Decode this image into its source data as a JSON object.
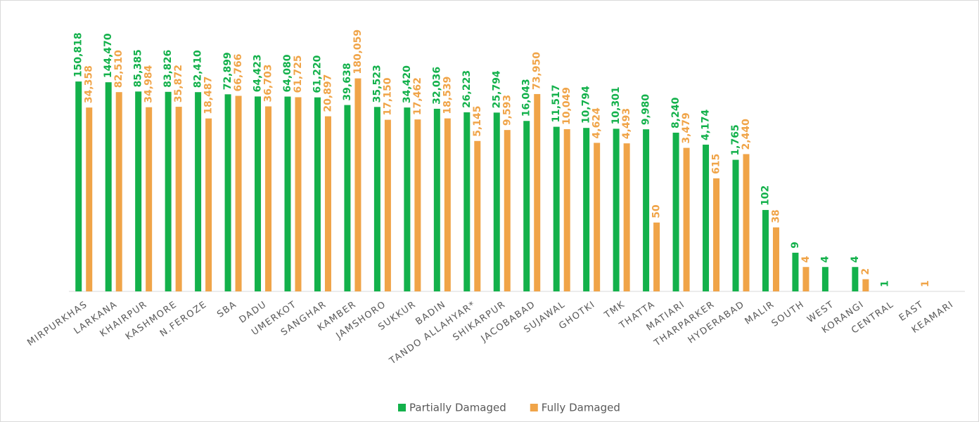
{
  "chart_data": {
    "type": "bar",
    "log_scale": true,
    "ylim": [
      1,
      200000
    ],
    "legend": "bottom",
    "categories": [
      "MIRPURKHAS",
      "LARKANA",
      "KHAIRPUR",
      "KASHMORE",
      "N.FEROZE",
      "SBA",
      "DADU",
      "UMERKOT",
      "SANGHAR",
      "KAMBER",
      "JAMSHORO",
      "SUKKUR",
      "BADIN",
      "TANDO ALLAHYAR*",
      "SHIKARPUR",
      "JACOBABAD",
      "SUJAWAL",
      "GHOTKI",
      "TMK",
      "THATTA",
      "MATIARI",
      "THARPARKER",
      "HYDERABAD",
      "MALIR",
      "SOUTH",
      "WEST",
      "KORANGI",
      "CENTRAL",
      "EAST",
      "KEAMARI"
    ],
    "series": [
      {
        "name": "Partially Damaged",
        "color": "#13b14b",
        "values": [
          150818,
          144470,
          85385,
          83826,
          82410,
          72899,
          64423,
          64080,
          61220,
          39638,
          35523,
          34420,
          32036,
          26223,
          25794,
          16043,
          11517,
          10794,
          10301,
          9980,
          8240,
          4174,
          1765,
          102,
          9,
          4,
          4,
          1,
          null,
          null
        ],
        "value_labels": [
          "150,818",
          "144,470",
          "85,385",
          "83,826",
          "82,410",
          "72,899",
          "64,423",
          "64,080",
          "61,220",
          "39,638",
          "35,523",
          "34,420",
          "32,036",
          "26,223",
          "25,794",
          "16,043",
          "11,517",
          "10,794",
          "10,301",
          "9,980",
          "8,240",
          "4,174",
          "1,765",
          "102",
          "9",
          "4",
          "4",
          "1",
          null,
          null
        ]
      },
      {
        "name": "Fully Damaged",
        "color": "#f0a448",
        "values": [
          34358,
          82510,
          34984,
          35872,
          18487,
          66766,
          36703,
          61725,
          20897,
          180059,
          17150,
          17462,
          18539,
          5145,
          9593,
          73950,
          10049,
          4624,
          4493,
          50,
          3479,
          615,
          2440,
          38,
          4,
          null,
          2,
          null,
          1,
          null
        ],
        "value_labels": [
          "34,358",
          "82,510",
          "34,984",
          "35,872",
          "18,487",
          "66,766",
          "36,703",
          "61,725",
          "20,897",
          "180,059",
          "17,150",
          "17,462",
          "18,539",
          "5,145",
          "9,593",
          "73,950",
          "10,049",
          "4,624",
          "4,493",
          "50",
          "3,479",
          "615",
          "2,440",
          "38",
          "4",
          null,
          "2",
          null,
          "1",
          null
        ]
      }
    ]
  }
}
